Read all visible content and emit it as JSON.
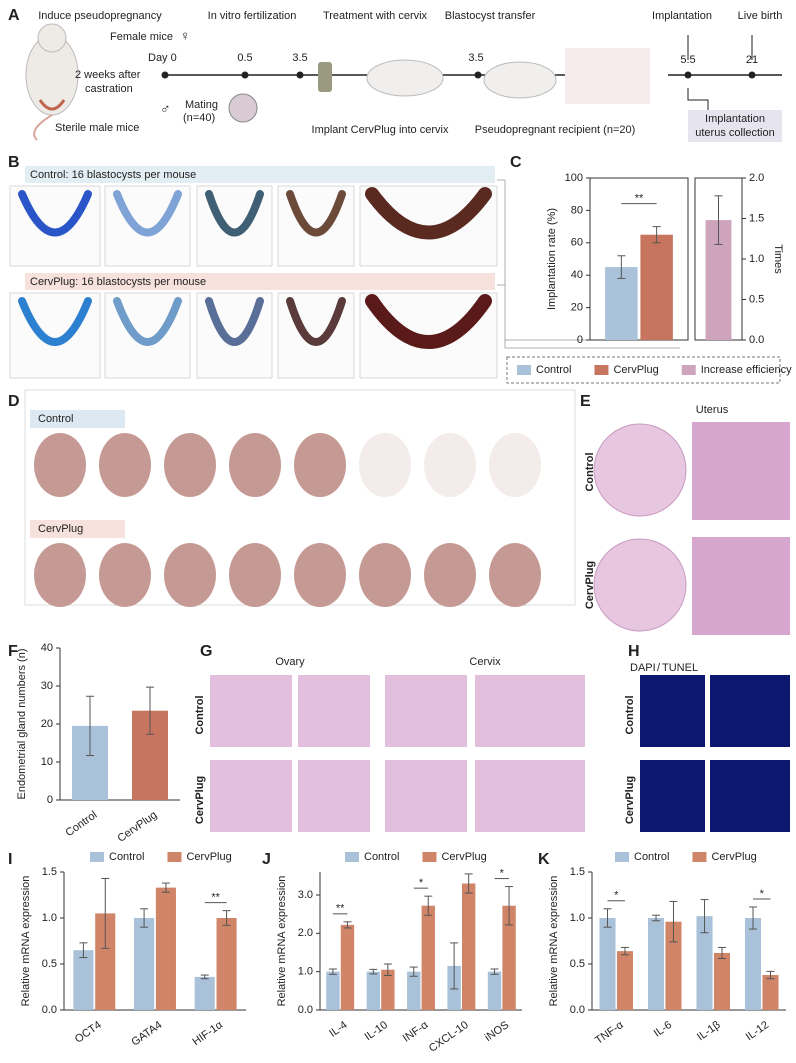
{
  "figure": {
    "a": {
      "letter": "A",
      "steps": [
        "Induce pseudopregnancy",
        "In vitro fertilization",
        "Treatment with cervix",
        "Blastocyst transfer",
        "Implantation",
        "Live birth"
      ],
      "female": "Female mice",
      "day0": "Day 0",
      "castration": [
        "2 weeks after",
        "castration"
      ],
      "male": "Sterile male mice",
      "mating": [
        "Mating",
        "(n=40)"
      ],
      "implant": "Implant CervPlug into cervix",
      "recipient": "Pseudopregnant recipient (n=20)",
      "collection": [
        "Implantation",
        "uterus collection"
      ],
      "days": [
        "0.5",
        "3.5",
        "3.5",
        "5.5",
        "21"
      ]
    },
    "b": {
      "letter": "B",
      "control": "Control: 16 blastocysts per mouse",
      "cervplug": "CervPlug: 16 blastocysts per mouse"
    },
    "c": {
      "letter": "C"
    },
    "d": {
      "letter": "D",
      "control": "Control",
      "cervplug": "CervPlug"
    },
    "e": {
      "letter": "E",
      "title": "Uterus",
      "control": "Control",
      "cervplug": "CervPlug"
    },
    "f": {
      "letter": "F"
    },
    "g": {
      "letter": "G",
      "ovary": "Ovary",
      "cervix": "Cervix",
      "control": "Control",
      "cervplug": "CervPlug"
    },
    "h": {
      "letter": "H",
      "dapi": "DAPI",
      "slash": "/",
      "tunel": "TUNEL",
      "control": "Control",
      "cervplug": "CervPlug"
    },
    "i": {
      "letter": "I"
    },
    "j": {
      "letter": "J"
    },
    "k": {
      "letter": "K"
    }
  },
  "chart_data": [
    {
      "type": "bar",
      "ylabel": "Implantation rate (%)",
      "y2label": "Times",
      "categories": [
        null
      ],
      "series": [
        {
          "name": "Control",
          "color": "#a9c1d9",
          "values": [
            45
          ],
          "errors": [
            7
          ]
        },
        {
          "name": "CervPlug",
          "color": "#c8755f",
          "values": [
            65
          ],
          "errors": [
            5
          ]
        },
        {
          "name": "Increase efficiency",
          "color": "#cda4bc",
          "values": [
            1.48
          ],
          "errors": [
            0.3
          ],
          "axis": "y2"
        }
      ],
      "significance": "**",
      "legend": "bottom",
      "ylim": [
        0,
        100
      ],
      "yticks": [
        0,
        20,
        40,
        60,
        80,
        100
      ],
      "y2lim": [
        0,
        2
      ],
      "y2ticks": [
        {
          "value": 0,
          "label": "0.0"
        },
        0.5,
        {
          "value": 1,
          "label": "1.0"
        },
        1.5,
        {
          "value": 2,
          "label": "2.0"
        }
      ]
    },
    {
      "type": "bar",
      "ylabel": "Endometrial gland numbers (n)",
      "categories": [
        "Control",
        "CervPlug"
      ],
      "values": [
        19.5,
        23.5
      ],
      "errors": [
        7.8,
        6.2
      ],
      "colors": [
        "#a9c1d9",
        "#c8755f"
      ],
      "ylim": [
        0,
        40
      ],
      "yticks": [
        0,
        10,
        20,
        30,
        40
      ]
    },
    {
      "type": "bar",
      "ylabel": "Relative mRNA expression",
      "categories": [
        "OCT4",
        "GATA4",
        "HIF-1α"
      ],
      "series": [
        {
          "name": "Control",
          "color": "#a9c1d9",
          "values": [
            0.65,
            1.0,
            0.36
          ],
          "errors": [
            0.08,
            0.1,
            0.02
          ]
        },
        {
          "name": "CervPlug",
          "color": "#d08468",
          "values": [
            1.05,
            1.33,
            1.0
          ],
          "errors": [
            0.38,
            0.05,
            0.08
          ]
        }
      ],
      "significance": [
        null,
        null,
        "**"
      ],
      "legend": "top",
      "ylim": [
        0,
        1.5
      ],
      "yticks": [
        {
          "value": 0,
          "label": "0.0"
        },
        0.5,
        {
          "value": 1,
          "label": "1.0"
        },
        1.5
      ]
    },
    {
      "type": "bar",
      "ylabel": "Relative mRNA expression",
      "categories": [
        "IL-4",
        "IL-10",
        "INF-α",
        "CXCL-10",
        "iNOS"
      ],
      "series": [
        {
          "name": "Control",
          "color": "#a9c1d9",
          "values": [
            1.0,
            1.0,
            1.0,
            1.15,
            1.0
          ],
          "errors": [
            0.07,
            0.06,
            0.12,
            0.6,
            0.07
          ]
        },
        {
          "name": "CervPlug",
          "color": "#d08468",
          "values": [
            2.22,
            1.05,
            2.72,
            3.3,
            2.72
          ],
          "errors": [
            0.08,
            0.15,
            0.25,
            0.25,
            0.5
          ]
        }
      ],
      "significance": [
        "**",
        null,
        "*",
        null,
        "*"
      ],
      "legend": "top",
      "ylim": [
        0,
        3.6
      ],
      "yticks": [
        {
          "value": 0,
          "label": "0.0"
        },
        {
          "value": 1,
          "label": "1.0"
        },
        {
          "value": 2,
          "label": "2.0"
        },
        {
          "value": 3,
          "label": "3.0"
        }
      ]
    },
    {
      "type": "bar",
      "ylabel": "Relative mRNA expression",
      "categories": [
        "TNF-α",
        "IL-6",
        "IL-1β",
        "IL-12"
      ],
      "series": [
        {
          "name": "Control",
          "color": "#a9c1d9",
          "values": [
            1.0,
            1.0,
            1.02,
            1.0
          ],
          "errors": [
            0.1,
            0.03,
            0.18,
            0.12
          ]
        },
        {
          "name": "CervPlug",
          "color": "#d08468",
          "values": [
            0.64,
            0.96,
            0.62,
            0.38
          ],
          "errors": [
            0.04,
            0.22,
            0.06,
            0.04
          ]
        }
      ],
      "significance": [
        "*",
        null,
        null,
        "*"
      ],
      "legend": "top",
      "ylim": [
        0,
        1.5
      ],
      "yticks": [
        {
          "value": 0,
          "label": "0.0"
        },
        0.5,
        {
          "value": 1,
          "label": "1.0"
        },
        1.5
      ]
    }
  ]
}
